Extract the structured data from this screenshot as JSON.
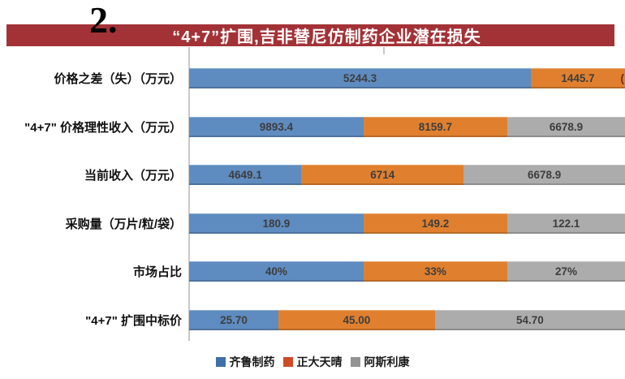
{
  "header": {
    "index_label": "2.",
    "title": "“4+7”扩围,吉非替尼仿制药企业潜在损失",
    "bar_color": "#a33237"
  },
  "colors": {
    "series_blue": "#5f8cc0",
    "series_orange": "#e0802f",
    "series_gray": "#acacac",
    "legend_blue": "#3e6fa9",
    "legend_orange": "#ce4b27",
    "legend_gray": "#939393",
    "axis_gray": "#c8c8c8"
  },
  "chart_data": {
    "type": "bar",
    "orientation": "horizontal",
    "stacked": "100%",
    "title": "“4+7”扩围,吉非替尼仿制药企业潜在损失",
    "categories": [
      "价格之差（失）（万元）",
      "\"4+7\" 价格理性收入（万元）",
      "当前收入（万元）",
      "采购量（万片/粒/袋）",
      "市场占比",
      "\"4+7\" 扩围中标价"
    ],
    "series": [
      {
        "name": "齐鲁制药",
        "color": "#5f8cc0",
        "values": [
          5244.3,
          9893.4,
          4649.1,
          180.9,
          40,
          25.7
        ],
        "labels": [
          "5244.3",
          "9893.4",
          "4649.1",
          "180.9",
          "40%",
          "25.70"
        ]
      },
      {
        "name": "正大天晴",
        "color": "#e0802f",
        "values": [
          1445.7,
          8159.7,
          6714,
          149.2,
          33,
          45.0
        ],
        "labels": [
          "1445.7",
          "8159.7",
          "6714",
          "149.2",
          "33%",
          "45.00"
        ]
      },
      {
        "name": "阿斯利康",
        "color": "#acacac",
        "values": [
          null,
          6678.9,
          6678.9,
          122.1,
          27,
          54.7
        ],
        "labels": [
          "(",
          "6678.9",
          "6678.9",
          "122.1",
          "27%",
          "54.70"
        ]
      }
    ],
    "legend_position": "bottom",
    "notes": "Row 1 third segment is clipped by the right edge of the image; only an opening parenthesis of its data label is visible."
  },
  "layout_note_visible_only": "chart bars are clipped at the right image edge"
}
